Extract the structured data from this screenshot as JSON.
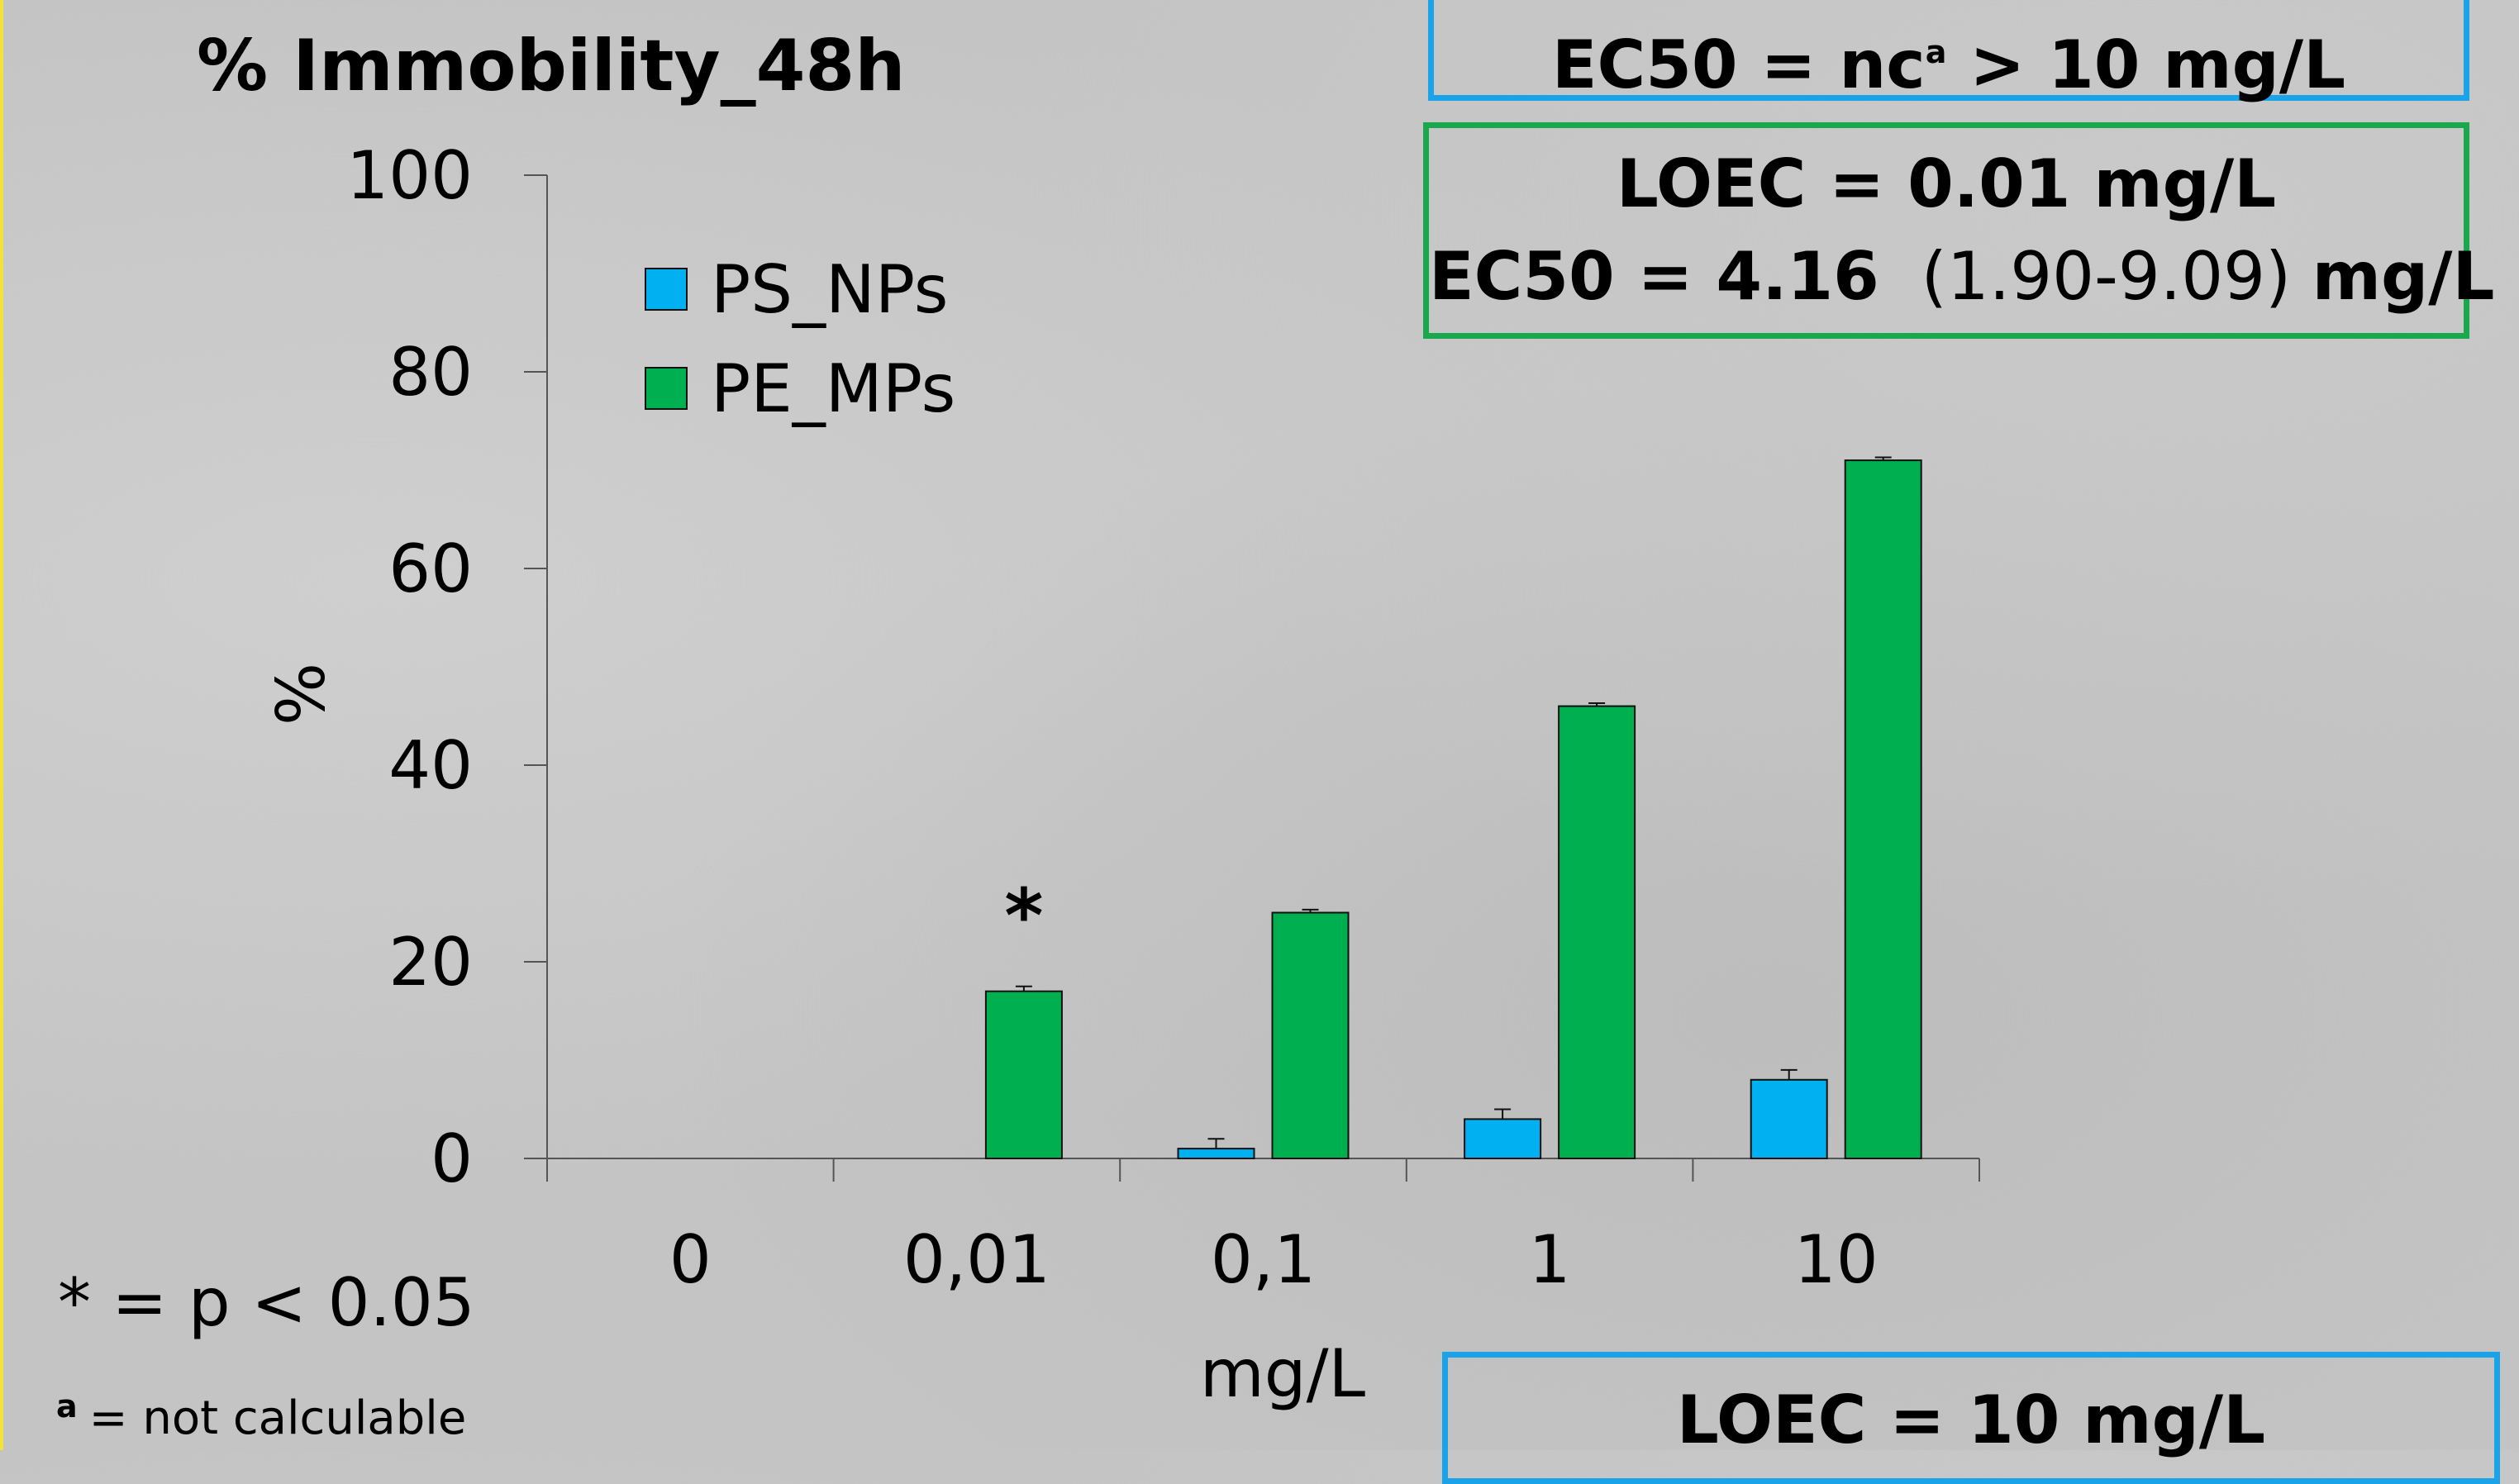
{
  "chart_data": {
    "type": "bar",
    "title": "% Immobility_48h",
    "xlabel": "mg/L",
    "ylabel": "%",
    "ylim": [
      0,
      100
    ],
    "yticks": [
      "0",
      "20",
      "40",
      "60",
      "80",
      "100"
    ],
    "categories": [
      "0",
      "0,01",
      "0,1",
      "1",
      "10"
    ],
    "series": [
      {
        "name": "PS_NPs",
        "color": "#00b0f0",
        "values": [
          0,
          0,
          1,
          4,
          8
        ],
        "errors": [
          0,
          0,
          1,
          1,
          1
        ]
      },
      {
        "name": "PE_MPs",
        "color": "#00b050",
        "values": [
          0,
          17,
          25,
          46,
          71
        ],
        "errors": [
          0,
          0.5,
          0.3,
          0.3,
          0.3
        ]
      }
    ],
    "annotations": [
      {
        "text": "*",
        "category": "0,01",
        "series": "PE_MPs"
      }
    ],
    "legend_position": "top-left"
  },
  "boxes": {
    "ps_top": {
      "label": "EC50 = nc",
      "sup": "a",
      "rest": " > 10 mg/L",
      "color": "#1aa3e8"
    },
    "pe": {
      "loec": "LOEC = 0.01 mg/L",
      "ec50_label": "EC50 = 4.16",
      "ec50_ci": "(1.90-9.09)",
      "ec50_unit": "mg/L",
      "color": "#1aa84e"
    },
    "ps_bottom": {
      "label": "LOEC = 10 mg/L",
      "color": "#1aa3e8"
    }
  },
  "footnotes": {
    "significance": "* = p < 0.05",
    "nc_sup": "a",
    "nc_text": "= not calculable"
  }
}
